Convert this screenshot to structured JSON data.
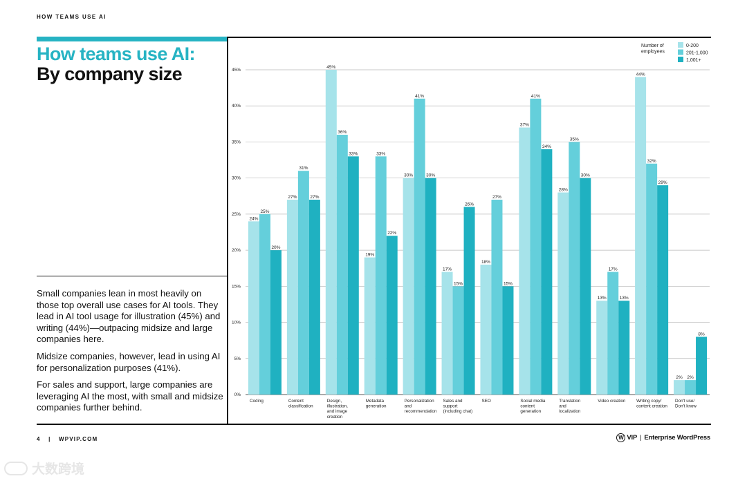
{
  "page": {
    "header_label": "HOW TEAMS USE AI",
    "title_accent": "How teams use AI:",
    "title_main": "By company size",
    "paragraphs": [
      "Small companies lean in most heavily on those top overall use cases for AI tools. They lead in AI tool usage for illustration (45%) and writing (44%)—outpacing midsize and large companies here.",
      "Midsize companies, however, lead in using AI for personalization purposes (41%).",
      "For sales and support, large companies are leveraging AI the most, with small and midsize companies further behind."
    ],
    "footer_page": "4",
    "footer_divider": "|",
    "footer_site": "WPVIP.COM",
    "footer_brand_vip": "VIP",
    "footer_brand_sep": "|",
    "footer_brand_name": "Enterprise WordPress",
    "watermark_text": "大数跨境",
    "colors": {
      "accent": "#26b3c3",
      "series_small": "#a6e3ea",
      "series_mid": "#64cfdb",
      "series_large": "#1fb1c1",
      "text": "#111111"
    }
  },
  "chart_data": {
    "type": "bar",
    "title": "How teams use AI: By company size",
    "xlabel": "",
    "ylabel": "",
    "ylim": [
      0,
      45
    ],
    "yticks": [
      0,
      5,
      10,
      15,
      20,
      25,
      30,
      35,
      40,
      45
    ],
    "ytick_labels": [
      "0%",
      "5%",
      "10%",
      "15%",
      "20%",
      "25%",
      "30%",
      "35%",
      "40%",
      "45%"
    ],
    "grid": true,
    "legend_title_lines": [
      "Number of",
      "employees"
    ],
    "legend_position": "top-right",
    "categories": [
      [
        "Coding"
      ],
      [
        "Content",
        "classification"
      ],
      [
        "Design,",
        "illustration,",
        "and image",
        "creation"
      ],
      [
        "Metadata",
        "generation"
      ],
      [
        "Personalization",
        "and",
        "recommendation"
      ],
      [
        "Sales and",
        "support",
        "(including chat)"
      ],
      [
        "SEO"
      ],
      [
        "Social media",
        "content",
        "generation"
      ],
      [
        "Translation",
        "and",
        "localization"
      ],
      [
        "Video creation"
      ],
      [
        "Writing copy/",
        "content creation"
      ],
      [
        "Don't use/",
        "Don't know"
      ]
    ],
    "series": [
      {
        "name": "0-200",
        "color": "#a6e3ea",
        "values": [
          24,
          27,
          45,
          19,
          30,
          17,
          18,
          37,
          28,
          13,
          44,
          2
        ]
      },
      {
        "name": "201-1,000",
        "color": "#64cfdb",
        "values": [
          25,
          31,
          36,
          33,
          41,
          15,
          27,
          41,
          35,
          17,
          32,
          2
        ]
      },
      {
        "name": "1,001+",
        "color": "#1fb1c1",
        "values": [
          20,
          27,
          33,
          22,
          30,
          26,
          15,
          34,
          30,
          13,
          29,
          8
        ]
      }
    ]
  }
}
